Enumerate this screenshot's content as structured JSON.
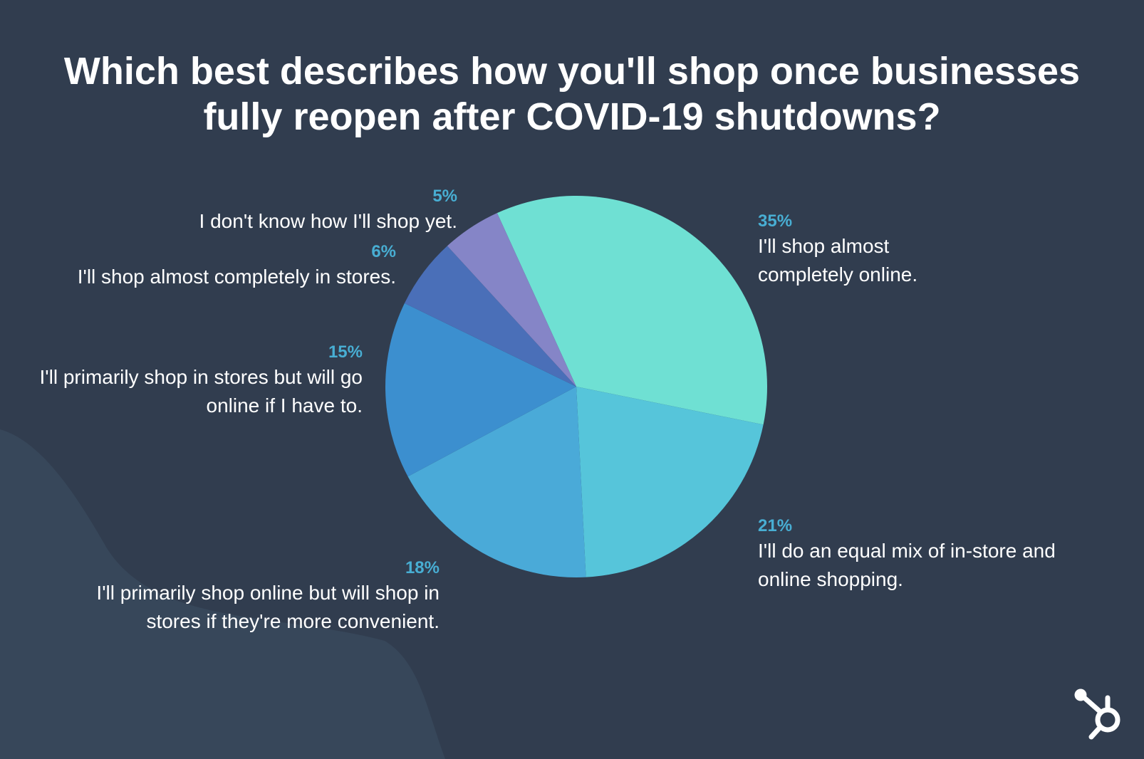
{
  "chart_data": {
    "type": "pie",
    "title": "Which best describes how you'll shop once businesses fully reopen after COVID-19 shutdowns?",
    "categories": [
      "I'll shop almost completely online.",
      "I'll do an equal mix of in-store and online shopping.",
      "I'll primarily shop online but will shop in stores if they're more convenient.",
      "I'll primarily shop in stores but will go online if I have to.",
      "I'll shop almost completely in stores.",
      "I don't know how I'll shop yet."
    ],
    "values": [
      35,
      21,
      18,
      15,
      6,
      5
    ],
    "value_labels": [
      "35%",
      "21%",
      "18%",
      "15%",
      "6%",
      "5%"
    ],
    "colors": [
      "#6fe0d3",
      "#56c5da",
      "#4aaad8",
      "#3c8fcf",
      "#4a6fb8",
      "#8585c7"
    ]
  }
}
